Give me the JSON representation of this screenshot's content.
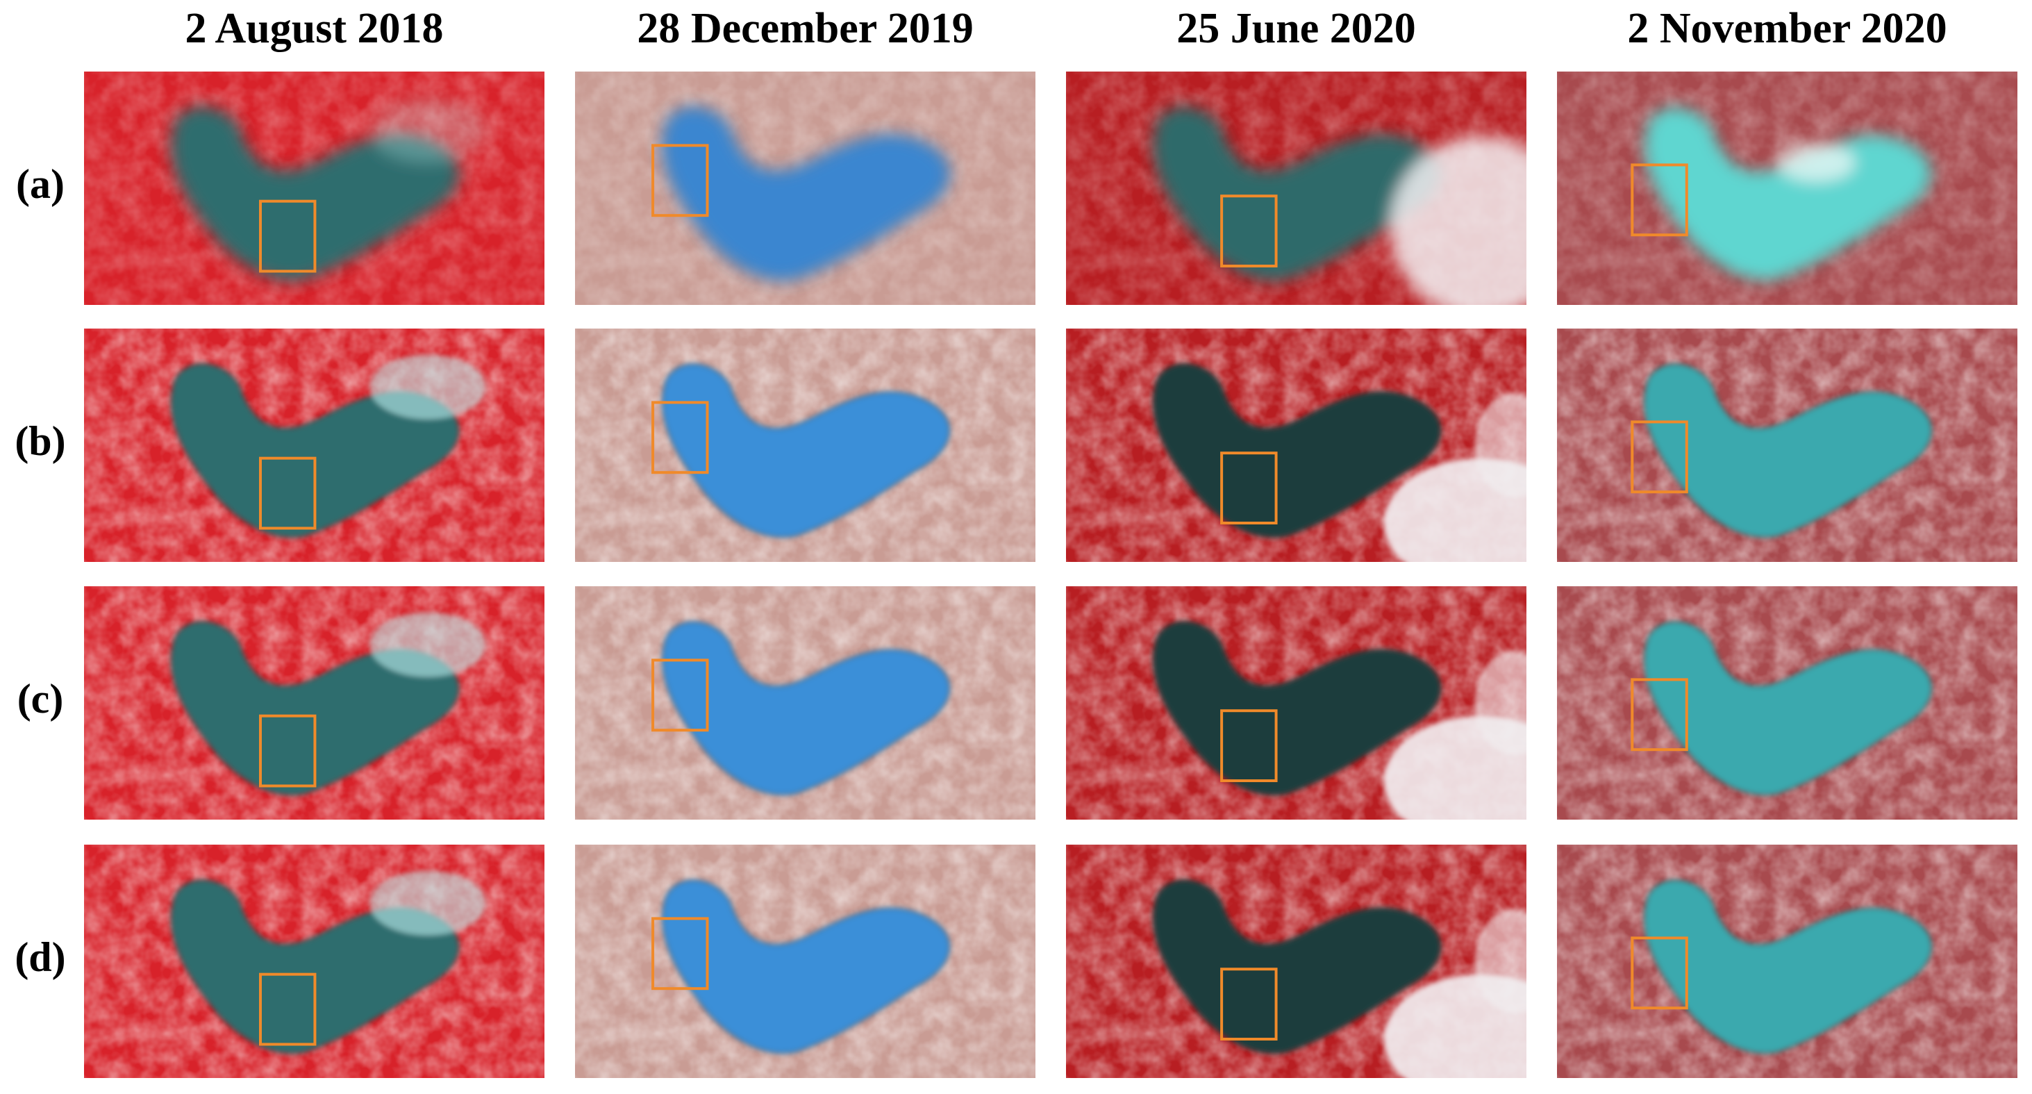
{
  "columns": [
    "2 August 2018",
    "28 December 2019",
    "25 June 2020",
    "2 November 2020"
  ],
  "rows": [
    "(a)",
    "(b)",
    "(c)",
    "(d)"
  ]
}
